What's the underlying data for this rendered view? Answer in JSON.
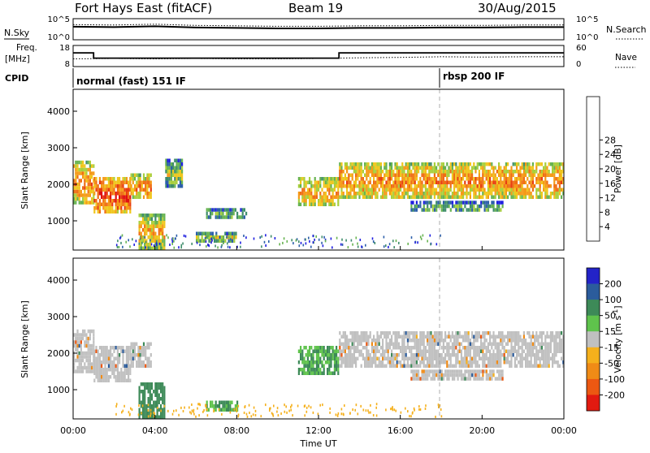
{
  "header": {
    "radar": "Fort Hays East (fitACF)",
    "beam": "Beam 19",
    "date": "30/Aug/2015"
  },
  "strip_labels": {
    "nsky": "N.Sky",
    "nsearch": "N.Search",
    "freq_line1": "Freq.",
    "freq_line2": "[MHz]",
    "nave": "Nave",
    "cpid": "CPID"
  },
  "cpid_modes": [
    {
      "label": "normal (fast) 151 IF",
      "start_hour": 0
    },
    {
      "label": "rbsp 200 IF",
      "start_hour": 18
    }
  ],
  "chart_data": [
    {
      "type": "line",
      "name": "noise-panel",
      "left_ticks": [
        "10^5",
        "10^0"
      ],
      "right_ticks": [
        "10^5",
        "10^0"
      ],
      "series": [
        {
          "name": "N.Sky",
          "x": [
            0,
            2,
            4,
            6,
            8,
            10,
            12,
            14,
            16,
            18,
            20,
            22,
            24
          ],
          "y": [
            3.1,
            3.0,
            3.2,
            2.9,
            2.8,
            2.7,
            2.7,
            2.8,
            2.8,
            2.9,
            2.9,
            3.0,
            3.0
          ]
        },
        {
          "name": "N.Search",
          "x": [
            0,
            2,
            4,
            6,
            8,
            10,
            12,
            14,
            16,
            18,
            20,
            22,
            24
          ],
          "y": [
            3.6,
            3.5,
            3.7,
            3.4,
            3.3,
            3.2,
            3.2,
            3.3,
            3.3,
            3.4,
            3.4,
            3.5,
            3.5
          ]
        }
      ]
    },
    {
      "type": "line",
      "name": "frequency-panel",
      "left_ticks": [
        "18",
        "8"
      ],
      "right_ticks": [
        "60",
        "0"
      ],
      "freq_ylim": [
        8,
        18
      ],
      "nave_ylim": [
        0,
        60
      ],
      "series": [
        {
          "name": "Freq",
          "x": [
            0,
            1,
            1,
            13,
            13,
            24
          ],
          "y": [
            14.5,
            14.5,
            12,
            12,
            14.5,
            14.5
          ]
        },
        {
          "name": "Nave",
          "x": [
            0,
            2,
            4,
            6,
            8,
            10,
            12,
            14,
            16,
            18,
            20,
            22,
            24
          ],
          "y": [
            22,
            23,
            22,
            23,
            22,
            22,
            23,
            25,
            26,
            28,
            27,
            28,
            28
          ]
        }
      ]
    },
    {
      "type": "heatmap",
      "name": "power-panel",
      "ylabel": "Slant Range [km]",
      "y_ticks": [
        1000,
        2000,
        3000,
        4000
      ],
      "ylim": [
        200,
        4600
      ],
      "colorbar": {
        "label": "Power [dB]",
        "ticks": [
          "4",
          "8",
          "12",
          "16",
          "20",
          "24",
          "28"
        ],
        "colors": [
          "#1f1fe0",
          "#2c5faa",
          "#3f8d6b",
          "#67b351",
          "#a8cf3d",
          "#f0c61c",
          "#f59a17",
          "#ef6d14",
          "#e83c10",
          "#e01010"
        ]
      },
      "echo_regions": [
        {
          "h0": 0.0,
          "h1": 1.0,
          "r0": 1500,
          "r1": 2650,
          "value": 18
        },
        {
          "h0": 1.0,
          "h1": 2.8,
          "r0": 1250,
          "r1": 2200,
          "value": 22
        },
        {
          "h0": 2.8,
          "h1": 3.8,
          "r0": 1600,
          "r1": 2300,
          "value": 18
        },
        {
          "h0": 3.2,
          "h1": 4.5,
          "r0": 250,
          "r1": 1200,
          "value": 16
        },
        {
          "h0": 4.5,
          "h1": 5.3,
          "r0": 1900,
          "r1": 2700,
          "value": 10
        },
        {
          "h0": 6.5,
          "h1": 8.5,
          "r0": 1100,
          "r1": 1350,
          "value": 10
        },
        {
          "h0": 6.0,
          "h1": 8.0,
          "r0": 450,
          "r1": 700,
          "value": 12
        },
        {
          "h0": 11.0,
          "h1": 13.0,
          "r0": 1400,
          "r1": 2200,
          "value": 16
        },
        {
          "h0": 13.0,
          "h1": 24.0,
          "r0": 1650,
          "r1": 2600,
          "value": 18
        },
        {
          "h0": 16.5,
          "h1": 21.0,
          "r0": 1250,
          "r1": 1550,
          "value": 8
        }
      ]
    },
    {
      "type": "heatmap",
      "name": "velocity-panel",
      "ylabel": "Slant Range [km]",
      "xlabel": "Time UT",
      "x_ticks": [
        "00:00",
        "04:00",
        "08:00",
        "12:00",
        "16:00",
        "20:00",
        "00:00"
      ],
      "xlim": [
        0,
        24
      ],
      "y_ticks": [
        1000,
        2000,
        3000,
        4000
      ],
      "ylim": [
        200,
        4600
      ],
      "colorbar": {
        "label": "Velocity [m s^-1]",
        "ticks": [
          "200",
          "100",
          "50",
          "15",
          "-15",
          "-50",
          "-100",
          "-200"
        ],
        "colors": [
          "#2323c8",
          "#2b5c9c",
          "#3d8a58",
          "#5fc34c",
          "#c0c0c0",
          "#f5b01c",
          "#f08b16",
          "#ec5812",
          "#e21a10"
        ]
      },
      "echo_regions": [
        {
          "h0": 0.0,
          "h1": 1.0,
          "r0": 1500,
          "r1": 2650,
          "value": 0
        },
        {
          "h0": 1.0,
          "h1": 2.8,
          "r0": 1250,
          "r1": 2200,
          "value": 0
        },
        {
          "h0": 2.8,
          "h1": 3.8,
          "r0": 1600,
          "r1": 2300,
          "value": 0
        },
        {
          "h0": 3.2,
          "h1": 4.5,
          "r0": 250,
          "r1": 1200,
          "value": 60
        },
        {
          "h0": 6.5,
          "h1": 8.0,
          "r0": 450,
          "r1": 700,
          "value": 30
        },
        {
          "h0": 11.0,
          "h1": 13.0,
          "r0": 1400,
          "r1": 2200,
          "value": 30
        },
        {
          "h0": 13.0,
          "h1": 24.0,
          "r0": 1650,
          "r1": 2600,
          "value": 0
        },
        {
          "h0": 16.5,
          "h1": 21.0,
          "r0": 1250,
          "r1": 1550,
          "value": 0
        }
      ]
    }
  ]
}
